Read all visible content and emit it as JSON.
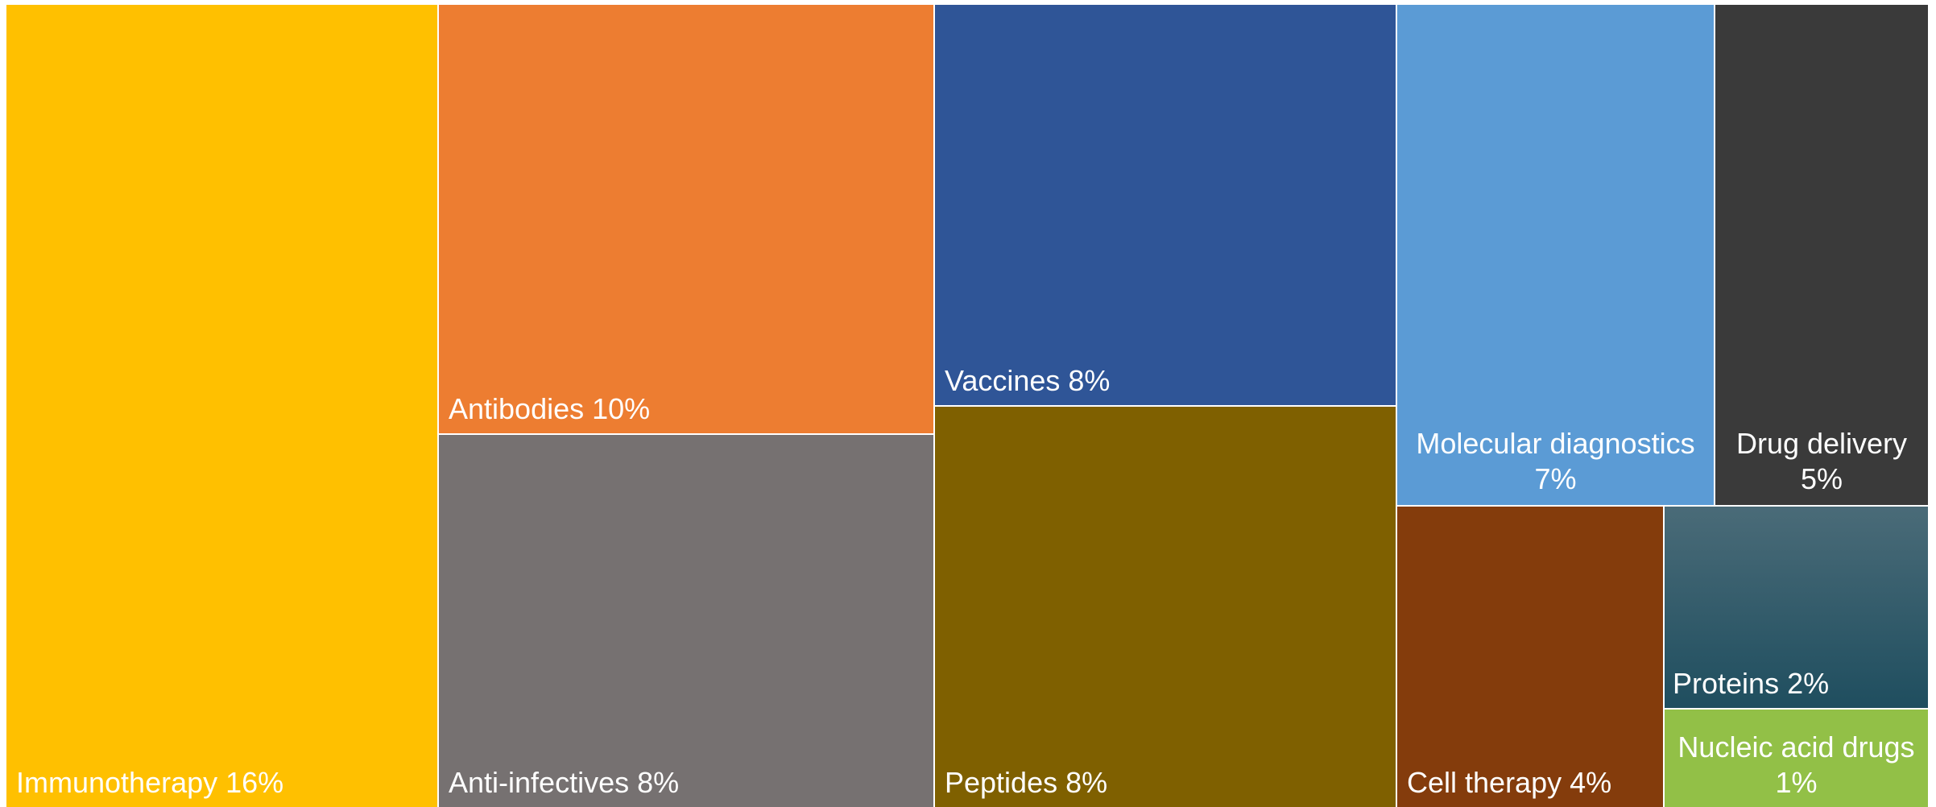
{
  "chart_data": {
    "type": "treemap",
    "title": "",
    "items": [
      {
        "name": "Immunotherapy",
        "label": "Immunotherapy 16%",
        "value": 16,
        "color": "#FFC000"
      },
      {
        "name": "Antibodies",
        "label": "Antibodies 10%",
        "value": 10,
        "color": "#ED7D31"
      },
      {
        "name": "Anti-infectives",
        "label": "Anti-infectives 8%",
        "value": 8,
        "color": "#767171"
      },
      {
        "name": "Vaccines",
        "label": "Vaccines 8%",
        "value": 8,
        "color": "#2F5597"
      },
      {
        "name": "Peptides",
        "label": "Peptides 8%",
        "value": 8,
        "color": "#7F6000"
      },
      {
        "name": "Molecular diagnostics",
        "label": "Molecular diagnostics",
        "value_label": "7%",
        "value": 7,
        "color": "#5B9BD5"
      },
      {
        "name": "Drug delivery",
        "label": "Drug delivery",
        "value_label": "5%",
        "value": 5,
        "color": "#3A3A3A"
      },
      {
        "name": "Cell therapy",
        "label": "Cell therapy 4%",
        "value": 4,
        "color": "#843C0C"
      },
      {
        "name": "Proteins",
        "label": "Proteins 2%",
        "value": 2,
        "color": "#1F4E5F",
        "color_top": "#4A6B78"
      },
      {
        "name": "Nucleic acid drugs",
        "label": "Nucleic acid drugs",
        "value_label": "1%",
        "value": 1,
        "color": "#92C047"
      }
    ]
  }
}
